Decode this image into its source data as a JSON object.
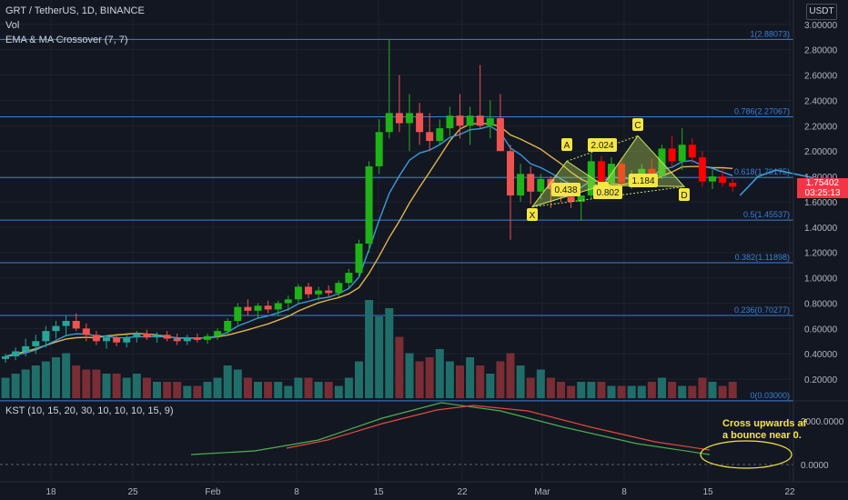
{
  "header": {
    "symbol_line": "GRT / TetherUS, 1D, BINANCE",
    "vol_label": "Vol",
    "ema_label": "EMA & MA Crossover (7, 7)"
  },
  "currency_badge": "USDT",
  "price_tag": {
    "price": "1.75402",
    "countdown": "03:25:13"
  },
  "kst_label": "KST (10, 15, 20, 30, 10, 10, 10, 15, 9)",
  "annotation_note": [
    "Cross upwards af",
    "a bounce near 0."
  ],
  "colors": {
    "up": "#26a69a",
    "up_bright": "#1fb317",
    "down": "#ef5350",
    "down_bright": "#ff0000",
    "ema": "#3a9bd9",
    "ma": "#e0b54a",
    "fib": "#3d7fd6",
    "kst": "#4caf50",
    "signal": "#e04a3c",
    "pattern": "#c9e85c",
    "highlight": "#f5e642"
  },
  "chart_data": {
    "type": "candlestick",
    "ylim": [
      0.0,
      3.1
    ],
    "y_ticks": [
      "3.00000",
      "2.80000",
      "2.60000",
      "2.40000",
      "2.20000",
      "2.00000",
      "1.80000",
      "1.60000",
      "1.40000",
      "1.20000",
      "1.00000",
      "0.80000",
      "0.60000",
      "0.40000",
      "0.20000"
    ],
    "x_ticks": [
      "18",
      "25",
      "Feb",
      "8",
      "15",
      "22",
      "Mar",
      "8",
      "15",
      "22"
    ],
    "fib_levels": [
      {
        "label": "1(2.88073)",
        "value": 2.88073
      },
      {
        "label": "0.786(2.27067)",
        "value": 2.27067
      },
      {
        "label": "0.618(1.79175)",
        "value": 1.79175
      },
      {
        "label": "0.5(1.45537)",
        "value": 1.45537
      },
      {
        "label": "0.382(1.11898)",
        "value": 1.11898
      },
      {
        "label": "0.236(0.70277)",
        "value": 0.70277
      },
      {
        "label": "0(0.03000)",
        "value": 0.03
      }
    ],
    "candles": [
      [
        0.36,
        0.4,
        0.33,
        0.38
      ],
      [
        0.38,
        0.45,
        0.35,
        0.42
      ],
      [
        0.42,
        0.52,
        0.38,
        0.46
      ],
      [
        0.46,
        0.55,
        0.4,
        0.5
      ],
      [
        0.5,
        0.62,
        0.45,
        0.58
      ],
      [
        0.58,
        0.66,
        0.52,
        0.62
      ],
      [
        0.62,
        0.7,
        0.55,
        0.66
      ],
      [
        0.66,
        0.72,
        0.58,
        0.6
      ],
      [
        0.6,
        0.64,
        0.5,
        0.55
      ],
      [
        0.55,
        0.58,
        0.47,
        0.5
      ],
      [
        0.5,
        0.55,
        0.44,
        0.53
      ],
      [
        0.53,
        0.56,
        0.46,
        0.49
      ],
      [
        0.49,
        0.55,
        0.45,
        0.53
      ],
      [
        0.53,
        0.58,
        0.49,
        0.56
      ],
      [
        0.56,
        0.59,
        0.51,
        0.53
      ],
      [
        0.53,
        0.57,
        0.49,
        0.55
      ],
      [
        0.55,
        0.58,
        0.5,
        0.52
      ],
      [
        0.52,
        0.56,
        0.47,
        0.5
      ],
      [
        0.5,
        0.55,
        0.47,
        0.53
      ],
      [
        0.53,
        0.56,
        0.49,
        0.51
      ],
      [
        0.51,
        0.56,
        0.48,
        0.54
      ],
      [
        0.54,
        0.6,
        0.51,
        0.58
      ],
      [
        0.58,
        0.68,
        0.55,
        0.66
      ],
      [
        0.66,
        0.8,
        0.63,
        0.77
      ],
      [
        0.77,
        0.83,
        0.7,
        0.74
      ],
      [
        0.74,
        0.8,
        0.68,
        0.78
      ],
      [
        0.78,
        0.82,
        0.72,
        0.75
      ],
      [
        0.75,
        0.82,
        0.7,
        0.8
      ],
      [
        0.8,
        0.86,
        0.74,
        0.83
      ],
      [
        0.83,
        0.95,
        0.8,
        0.93
      ],
      [
        0.93,
        0.96,
        0.84,
        0.87
      ],
      [
        0.87,
        0.93,
        0.82,
        0.9
      ],
      [
        0.9,
        0.94,
        0.85,
        0.88
      ],
      [
        0.88,
        0.98,
        0.85,
        0.96
      ],
      [
        0.96,
        1.07,
        0.92,
        1.04
      ],
      [
        1.04,
        1.3,
        1.0,
        1.27
      ],
      [
        1.27,
        1.92,
        1.2,
        1.88
      ],
      [
        1.88,
        2.25,
        1.82,
        2.15
      ],
      [
        2.15,
        2.88,
        2.1,
        2.3
      ],
      [
        2.3,
        2.6,
        2.15,
        2.22
      ],
      [
        2.22,
        2.45,
        2.0,
        2.3
      ],
      [
        2.3,
        2.38,
        2.05,
        2.15
      ],
      [
        2.15,
        2.3,
        2.0,
        2.08
      ],
      [
        2.08,
        2.25,
        2.05,
        2.18
      ],
      [
        2.18,
        2.35,
        2.12,
        2.28
      ],
      [
        2.28,
        2.45,
        2.1,
        2.2
      ],
      [
        2.2,
        2.35,
        2.05,
        2.28
      ],
      [
        2.28,
        2.68,
        2.18,
        2.2
      ],
      [
        2.2,
        2.4,
        2.1,
        2.26
      ],
      [
        2.26,
        2.45,
        2.0,
        2.0
      ],
      [
        2.0,
        2.05,
        1.3,
        1.65
      ],
      [
        1.65,
        1.9,
        1.6,
        1.82
      ],
      [
        1.82,
        1.88,
        1.58,
        1.68
      ],
      [
        1.68,
        1.82,
        1.62,
        1.78
      ],
      [
        1.78,
        1.8,
        1.55,
        1.7
      ],
      [
        1.7,
        1.76,
        1.6,
        1.64
      ],
      [
        1.64,
        1.7,
        1.55,
        1.6
      ],
      [
        1.6,
        1.65,
        1.45,
        1.65
      ],
      [
        1.65,
        1.98,
        1.62,
        1.92
      ],
      [
        1.92,
        1.96,
        1.7,
        1.75
      ],
      [
        1.75,
        1.95,
        1.7,
        1.9
      ],
      [
        1.9,
        1.95,
        1.7,
        1.75
      ],
      [
        1.75,
        1.85,
        1.7,
        1.78
      ],
      [
        1.78,
        1.9,
        1.72,
        1.86
      ],
      [
        1.86,
        1.94,
        1.75,
        1.8
      ],
      [
        1.8,
        2.05,
        1.78,
        2.02
      ],
      [
        2.02,
        2.12,
        1.88,
        1.92
      ],
      [
        1.92,
        2.18,
        1.85,
        2.05
      ],
      [
        2.05,
        2.1,
        1.9,
        1.95
      ],
      [
        1.95,
        2.0,
        1.72,
        1.76
      ],
      [
        1.76,
        1.85,
        1.7,
        1.8
      ],
      [
        1.8,
        1.86,
        1.72,
        1.75
      ],
      [
        1.75,
        1.78,
        1.68,
        1.72
      ]
    ],
    "volume": [
      0.05,
      0.06,
      0.07,
      0.08,
      0.09,
      0.1,
      0.11,
      0.08,
      0.07,
      0.07,
      0.06,
      0.06,
      0.05,
      0.06,
      0.05,
      0.04,
      0.04,
      0.04,
      0.03,
      0.03,
      0.04,
      0.05,
      0.08,
      0.07,
      0.05,
      0.04,
      0.04,
      0.04,
      0.03,
      0.05,
      0.05,
      0.04,
      0.04,
      0.03,
      0.05,
      0.09,
      0.24,
      0.2,
      0.22,
      0.15,
      0.11,
      0.09,
      0.1,
      0.12,
      0.09,
      0.08,
      0.1,
      0.08,
      0.06,
      0.09,
      0.11,
      0.08,
      0.05,
      0.07,
      0.05,
      0.04,
      0.03,
      0.04,
      0.04,
      0.04,
      0.03,
      0.03,
      0.03,
      0.03,
      0.04,
      0.05,
      0.04,
      0.03,
      0.03,
      0.05,
      0.04,
      0.03,
      0.04
    ],
    "projection": [
      1.65,
      1.8,
      1.85,
      1.82,
      1.79
    ],
    "harmonic": {
      "points": [
        "X",
        "A",
        "B",
        "C",
        "D"
      ],
      "ratios": [
        "0.438",
        "0.802",
        "2.024",
        "1.184"
      ]
    },
    "kst": {
      "y_ticks": [
        "2000.0000",
        "0.0000"
      ]
    }
  }
}
